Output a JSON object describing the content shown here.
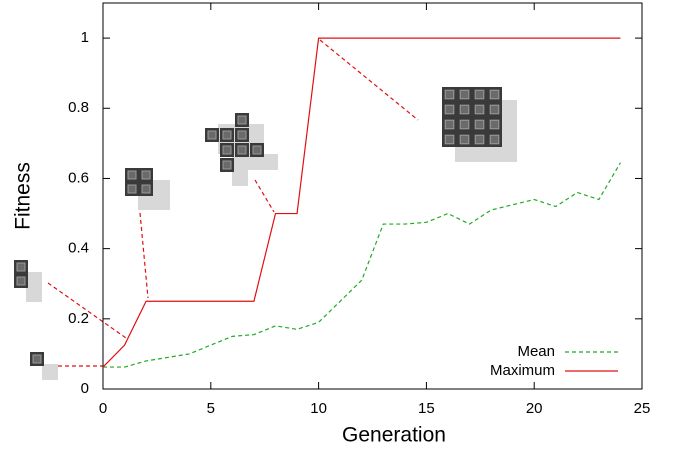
{
  "chart_data": {
    "type": "line",
    "x_label": "Generation",
    "y_label": "Fitness",
    "x": [
      0,
      1,
      2,
      3,
      4,
      5,
      6,
      7,
      8,
      9,
      10,
      11,
      12,
      13,
      14,
      15,
      16,
      17,
      18,
      19,
      20,
      21,
      22,
      23,
      24
    ],
    "series": [
      {
        "name": "Mean",
        "color": "#22aa22",
        "dashed": true,
        "values": [
          0.0625,
          0.0625,
          0.08,
          0.09,
          0.1,
          0.125,
          0.15,
          0.155,
          0.18,
          0.17,
          0.19,
          0.25,
          0.31,
          0.47,
          0.47,
          0.475,
          0.5,
          0.47,
          0.51,
          0.525,
          0.54,
          0.52,
          0.56,
          0.54,
          0.645
        ]
      },
      {
        "name": "Maximum",
        "color": "#e01010",
        "dashed": false,
        "values": [
          0.0625,
          0.125,
          0.25,
          0.25,
          0.25,
          0.25,
          0.25,
          0.25,
          0.5,
          0.5,
          1,
          1,
          1,
          1,
          1,
          1,
          1,
          1,
          1,
          1,
          1,
          1,
          1,
          1,
          1
        ]
      }
    ],
    "xlim": [
      0,
      25
    ],
    "xticks": [
      0,
      5,
      10,
      15,
      20,
      25
    ],
    "ylim": [
      0,
      1.1
    ],
    "yticks": [
      0,
      0.2,
      0.4,
      0.6,
      0.8,
      1
    ],
    "legend": "lower right"
  }
}
